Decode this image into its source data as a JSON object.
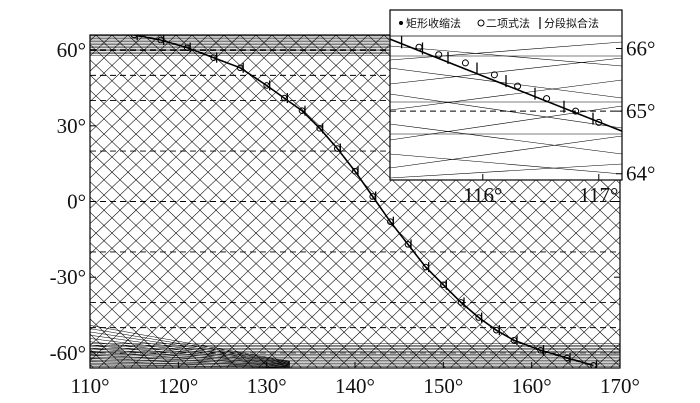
{
  "chart_data": [
    {
      "type": "line",
      "name": "main",
      "title": "",
      "xlabel": "",
      "ylabel": "",
      "xlim": [
        110,
        170
      ],
      "ylim": [
        -66,
        66
      ],
      "x_ticks": [
        110,
        120,
        130,
        140,
        150,
        160,
        170
      ],
      "y_ticks": [
        -60,
        -30,
        0,
        30,
        60
      ],
      "x_tick_labels": [
        "110°",
        "120°",
        "130°",
        "140°",
        "150°",
        "160°",
        "170°"
      ],
      "y_tick_labels": [
        "-60°",
        "-30°",
        "0°",
        "30°",
        "60°"
      ],
      "dashed_parallels": [
        -60,
        -50,
        -40,
        -20,
        0,
        20,
        40,
        50,
        60
      ],
      "series": [
        {
          "marker": "circle",
          "x": [
            115,
            118,
            121,
            124,
            127,
            130,
            132,
            134,
            136,
            138,
            140,
            142,
            144,
            146,
            148,
            150,
            152,
            154,
            156,
            158,
            161,
            164,
            167
          ],
          "y": [
            66,
            64,
            61,
            57,
            53,
            46,
            41,
            36,
            29,
            21,
            12,
            2,
            -8,
            -17,
            -26,
            -33,
            -40,
            -46,
            -51,
            -55,
            -59,
            -62,
            -65
          ]
        },
        {
          "marker": "vertical-bar",
          "x": [
            115,
            118,
            121,
            124,
            127,
            130,
            132,
            134,
            136,
            138,
            140,
            142,
            144,
            146,
            148,
            150,
            152,
            154,
            156,
            158,
            161,
            164,
            167
          ],
          "y": [
            66,
            64,
            61,
            57,
            53,
            46,
            41,
            36,
            29,
            21,
            12,
            2,
            -8,
            -17,
            -26,
            -33,
            -40,
            -46,
            -51,
            -55,
            -59,
            -62,
            -65
          ]
        }
      ]
    },
    {
      "type": "line",
      "name": "inset",
      "xlim": [
        115.2,
        117.2
      ],
      "ylim": [
        63.9,
        66.2
      ],
      "x_ticks": [
        116,
        117
      ],
      "y_ticks": [
        64,
        65,
        66
      ],
      "x_tick_labels": [
        "116°",
        "117°"
      ],
      "y_tick_labels": [
        "64°",
        "65°",
        "66°"
      ],
      "dashed_parallels": [
        65
      ],
      "legend": [
        "矩形收缩法",
        "二项式法",
        "分段拟合法"
      ],
      "legend_markers": [
        "dot",
        "circle",
        "bar"
      ],
      "legend_position": "top",
      "series": [
        {
          "marker": "circle",
          "x": [
            115.45,
            115.62,
            115.85,
            116.1,
            116.3,
            116.55,
            116.8,
            117.0
          ],
          "y": [
            66.02,
            65.9,
            65.77,
            65.58,
            65.4,
            65.2,
            65.0,
            64.82
          ]
        },
        {
          "marker": "vertical-bar",
          "x": [
            115.3,
            115.48,
            115.7,
            115.95,
            116.2,
            116.45,
            116.7,
            116.95
          ],
          "y": [
            66.1,
            66.0,
            65.85,
            65.68,
            65.48,
            65.28,
            65.07,
            64.88
          ]
        }
      ]
    }
  ]
}
